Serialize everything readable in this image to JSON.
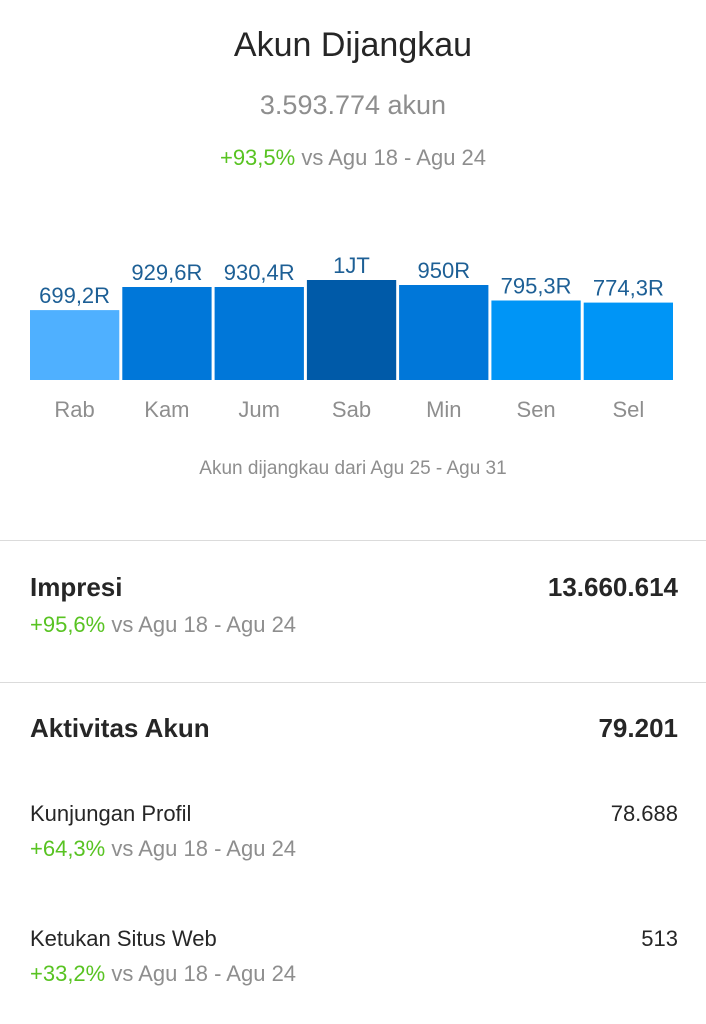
{
  "header": {
    "title": "Akun Dijangkau",
    "total": "3.593.774 akun",
    "change": "+93,5%",
    "compare_text": " vs Agu 18 - Agu 24"
  },
  "chart_data": {
    "type": "bar",
    "categories": [
      "Rab",
      "Kam",
      "Jum",
      "Sab",
      "Min",
      "Sen",
      "Sel"
    ],
    "values": [
      699200,
      929600,
      930400,
      1000000,
      950000,
      795300,
      774300
    ],
    "data_labels": [
      "699,2R",
      "929,6R",
      "930,4R",
      "1JT",
      "950R",
      "795,3R",
      "774,3R"
    ],
    "colors": [
      "#4fb0ff",
      "#0077d9",
      "#0077d9",
      "#005aa8",
      "#0077d9",
      "#0095f6",
      "#0095f6"
    ],
    "label_color": "#1d5f95",
    "ylim": [
      0,
      1000000
    ],
    "grid": false,
    "legend": "none"
  },
  "chart_caption": "Akun dijangkau dari Agu 25 - Agu 31",
  "impressions": {
    "label": "Impresi",
    "value": "13.660.614",
    "change": "+95,6%",
    "compare_text": " vs Agu 18 - Agu 24"
  },
  "account_activity": {
    "label": "Aktivitas Akun",
    "value": "79.201",
    "items": [
      {
        "label": "Kunjungan Profil",
        "value": "78.688",
        "change": "+64,3%",
        "compare_text": " vs Agu 18 - Agu 24"
      },
      {
        "label": "Ketukan Situs Web",
        "value": "513",
        "change": "+33,2%",
        "compare_text": " vs Agu 18 - Agu 24"
      }
    ]
  }
}
